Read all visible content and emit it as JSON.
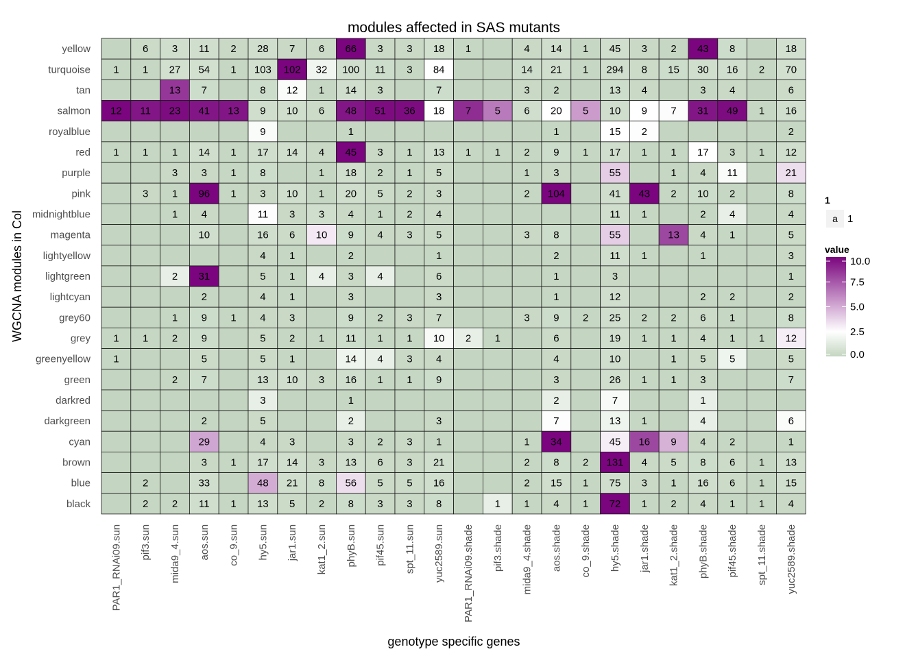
{
  "chart_data": {
    "type": "heatmap",
    "title": "modules affected in SAS mutants",
    "xlabel": "genotype specific genes",
    "ylabel": "WGCNA modules in Col",
    "x": [
      "PAR1_RNAi09.sun",
      "pif3.sun",
      "mida9_4.sun",
      "aos.sun",
      "co_9.sun",
      "hy5.sun",
      "jar1.sun",
      "kat1_2.sun",
      "phyB.sun",
      "pif45.sun",
      "spt_11.sun",
      "yuc2589.sun",
      "PAR1_RNAi09.shade",
      "pif3.shade",
      "mida9_4.shade",
      "aos.shade",
      "co_9.shade",
      "hy5.shade",
      "jar1.shade",
      "kat1_2.shade",
      "phyB.shade",
      "pif45.shade",
      "spt_11.shade",
      "yuc2589.shade"
    ],
    "y": [
      "yellow",
      "turquoise",
      "tan",
      "salmon",
      "royalblue",
      "red",
      "purple",
      "pink",
      "midnightblue",
      "magenta",
      "lightyellow",
      "lightgreen",
      "lightcyan",
      "grey60",
      "grey",
      "greenyellow",
      "green",
      "darkred",
      "darkgreen",
      "cyan",
      "brown",
      "blue",
      "black"
    ],
    "counts": [
      [
        null,
        6,
        3,
        11,
        2,
        28,
        7,
        6,
        66,
        3,
        3,
        18,
        1,
        null,
        4,
        14,
        1,
        45,
        3,
        2,
        43,
        8,
        null,
        18
      ],
      [
        1,
        1,
        27,
        54,
        1,
        103,
        102,
        32,
        100,
        11,
        3,
        84,
        null,
        null,
        14,
        21,
        1,
        294,
        8,
        15,
        30,
        16,
        2,
        70
      ],
      [
        null,
        null,
        13,
        7,
        null,
        8,
        12,
        1,
        14,
        3,
        null,
        7,
        null,
        null,
        3,
        2,
        null,
        13,
        4,
        null,
        3,
        4,
        null,
        6
      ],
      [
        12,
        11,
        23,
        41,
        13,
        9,
        10,
        6,
        48,
        51,
        36,
        18,
        7,
        5,
        6,
        20,
        5,
        10,
        9,
        7,
        31,
        49,
        1,
        16
      ],
      [
        null,
        null,
        null,
        null,
        null,
        9,
        null,
        null,
        1,
        null,
        null,
        null,
        null,
        null,
        null,
        1,
        null,
        15,
        2,
        null,
        null,
        null,
        null,
        2
      ],
      [
        1,
        1,
        1,
        14,
        1,
        17,
        14,
        4,
        45,
        3,
        1,
        13,
        1,
        1,
        2,
        9,
        1,
        17,
        1,
        1,
        17,
        3,
        1,
        12
      ],
      [
        null,
        null,
        3,
        3,
        1,
        8,
        null,
        1,
        18,
        2,
        1,
        5,
        null,
        null,
        1,
        3,
        null,
        55,
        null,
        1,
        4,
        11,
        null,
        21
      ],
      [
        null,
        3,
        1,
        96,
        1,
        3,
        10,
        1,
        20,
        5,
        2,
        3,
        null,
        null,
        2,
        104,
        null,
        41,
        43,
        2,
        10,
        2,
        null,
        8
      ],
      [
        null,
        null,
        1,
        4,
        null,
        11,
        3,
        3,
        4,
        1,
        2,
        4,
        null,
        null,
        null,
        null,
        null,
        11,
        1,
        null,
        2,
        4,
        null,
        4
      ],
      [
        null,
        null,
        null,
        10,
        null,
        16,
        6,
        10,
        9,
        4,
        3,
        5,
        null,
        null,
        3,
        8,
        null,
        55,
        null,
        13,
        4,
        1,
        null,
        5
      ],
      [
        null,
        null,
        null,
        null,
        null,
        4,
        1,
        null,
        2,
        null,
        null,
        1,
        null,
        null,
        null,
        2,
        null,
        11,
        1,
        null,
        1,
        null,
        null,
        3
      ],
      [
        null,
        null,
        2,
        31,
        null,
        5,
        1,
        4,
        3,
        4,
        null,
        6,
        null,
        null,
        null,
        1,
        null,
        3,
        null,
        null,
        null,
        null,
        null,
        1
      ],
      [
        null,
        null,
        null,
        2,
        null,
        4,
        1,
        null,
        3,
        null,
        null,
        3,
        null,
        null,
        null,
        1,
        null,
        12,
        null,
        null,
        2,
        2,
        null,
        2
      ],
      [
        null,
        null,
        1,
        9,
        1,
        4,
        3,
        null,
        9,
        2,
        3,
        7,
        null,
        null,
        3,
        9,
        2,
        25,
        2,
        2,
        6,
        1,
        null,
        8
      ],
      [
        1,
        1,
        2,
        9,
        null,
        5,
        2,
        1,
        11,
        1,
        1,
        10,
        2,
        1,
        null,
        6,
        null,
        19,
        1,
        1,
        4,
        1,
        1,
        12
      ],
      [
        1,
        null,
        null,
        5,
        null,
        5,
        1,
        null,
        14,
        4,
        3,
        4,
        null,
        null,
        null,
        4,
        null,
        10,
        null,
        1,
        5,
        5,
        null,
        5
      ],
      [
        null,
        null,
        2,
        7,
        null,
        13,
        10,
        3,
        16,
        1,
        1,
        9,
        null,
        null,
        null,
        3,
        null,
        26,
        1,
        1,
        3,
        null,
        null,
        7
      ],
      [
        null,
        null,
        null,
        null,
        null,
        3,
        null,
        null,
        1,
        null,
        null,
        null,
        null,
        null,
        null,
        2,
        null,
        7,
        null,
        null,
        1,
        null,
        null,
        null
      ],
      [
        null,
        null,
        null,
        2,
        null,
        5,
        null,
        null,
        2,
        null,
        null,
        3,
        null,
        null,
        null,
        7,
        null,
        13,
        1,
        null,
        4,
        null,
        null,
        6
      ],
      [
        null,
        null,
        null,
        29,
        null,
        4,
        3,
        null,
        3,
        2,
        3,
        1,
        null,
        null,
        1,
        34,
        null,
        45,
        16,
        9,
        4,
        2,
        null,
        1
      ],
      [
        null,
        null,
        null,
        3,
        1,
        17,
        14,
        3,
        13,
        6,
        3,
        21,
        null,
        null,
        2,
        8,
        2,
        131,
        4,
        5,
        8,
        6,
        1,
        13
      ],
      [
        null,
        2,
        null,
        33,
        null,
        48,
        21,
        8,
        56,
        5,
        5,
        16,
        null,
        null,
        2,
        15,
        1,
        75,
        3,
        1,
        16,
        6,
        1,
        15
      ],
      [
        null,
        2,
        2,
        11,
        1,
        13,
        5,
        2,
        8,
        3,
        3,
        8,
        null,
        1,
        1,
        4,
        1,
        72,
        1,
        2,
        4,
        1,
        1,
        4
      ]
    ],
    "fill_values": [
      [
        0,
        0.3,
        0.5,
        0.5,
        0.2,
        0.5,
        0.2,
        0.3,
        10,
        0.2,
        0.2,
        0.6,
        0.1,
        0,
        0.2,
        0.5,
        0.1,
        0.5,
        0.2,
        0.1,
        10,
        0.4,
        0,
        0.6
      ],
      [
        0.1,
        0.1,
        0.6,
        0.6,
        0.1,
        0.6,
        10,
        1.9,
        0.5,
        0.4,
        0.1,
        2.5,
        0,
        0,
        0.4,
        0.5,
        0.1,
        0.5,
        0.3,
        0.4,
        0.5,
        0.5,
        0.1,
        0.6
      ],
      [
        0,
        0,
        8.5,
        0.4,
        0,
        0.4,
        2.3,
        0.1,
        0.5,
        0.2,
        0,
        0.4,
        0,
        0,
        0.2,
        0.1,
        0,
        0.4,
        0.2,
        0,
        0.1,
        0.2,
        0,
        0.3
      ],
      [
        10,
        9.5,
        9.8,
        9.5,
        9.5,
        0.5,
        0.5,
        0.3,
        9.5,
        9.8,
        9.8,
        2.5,
        8.8,
        6.5,
        0.5,
        2.5,
        5.5,
        0.5,
        2.5,
        2.6,
        9.5,
        9.8,
        0.1,
        0.5
      ],
      [
        0,
        0,
        0,
        0,
        0,
        2.3,
        0,
        0,
        0.1,
        0,
        0,
        0,
        0,
        0,
        0,
        0.1,
        0,
        2.5,
        2.4,
        0,
        0,
        0,
        0,
        0.1
      ],
      [
        0.1,
        0.1,
        0.1,
        0.5,
        0.1,
        0.5,
        0.5,
        0.2,
        10,
        0.2,
        0.1,
        0.5,
        0.1,
        0.1,
        0.1,
        0.4,
        0.1,
        0.5,
        0.1,
        0.1,
        2.5,
        0.2,
        0.1,
        0.5
      ],
      [
        0,
        0,
        0.2,
        0.2,
        0.1,
        0.4,
        0,
        0.1,
        0.5,
        0.1,
        0.1,
        0.3,
        0,
        0,
        0.1,
        0.2,
        0,
        4.0,
        0,
        0.1,
        0.2,
        2.3,
        0,
        3.5
      ],
      [
        0,
        0.2,
        0.1,
        10,
        0.1,
        0.2,
        0.5,
        0.1,
        0.5,
        0.3,
        0.1,
        0.2,
        0,
        0,
        0.1,
        10,
        0,
        0.5,
        10,
        0.1,
        0.4,
        0.1,
        0,
        0.4
      ],
      [
        0,
        0,
        0.1,
        0.2,
        0,
        2.4,
        0.2,
        0.5,
        0.2,
        0.1,
        0.1,
        0.2,
        0,
        0,
        0,
        0,
        0,
        0.5,
        0.1,
        0,
        0.1,
        1.5,
        0,
        0.2
      ],
      [
        0,
        0,
        0,
        0.5,
        0,
        0.5,
        0.3,
        3.2,
        0.4,
        0.2,
        0.2,
        0.3,
        0,
        0,
        0.2,
        0.4,
        0,
        4.0,
        0,
        8.0,
        0.2,
        0.1,
        0,
        0.3
      ],
      [
        0,
        0,
        0,
        0,
        0,
        0.2,
        0.1,
        0,
        0.1,
        0,
        0,
        0.1,
        0,
        0,
        0,
        0.1,
        0,
        0.5,
        0.1,
        0,
        0.1,
        0,
        0,
        0.2
      ],
      [
        0,
        0,
        1.5,
        10,
        0,
        0.2,
        0.1,
        1.5,
        0.2,
        1.5,
        0,
        0.3,
        0,
        0,
        0,
        0.1,
        0,
        0.2,
        0,
        0,
        0,
        0,
        0,
        0.1
      ],
      [
        0,
        0,
        0,
        0.1,
        0,
        0.2,
        0.1,
        0,
        0.2,
        0,
        0,
        0.2,
        0,
        0,
        0,
        0.1,
        0,
        0.5,
        0,
        0,
        0.1,
        0.1,
        0,
        0.1
      ],
      [
        0,
        0,
        0.1,
        0.4,
        0.1,
        0.2,
        0.2,
        0,
        0.4,
        0.1,
        0.2,
        0.3,
        0,
        0,
        0.2,
        0.4,
        0.1,
        0.5,
        0.1,
        0.1,
        0.3,
        0.1,
        0,
        0.4
      ],
      [
        0.1,
        0.1,
        0.1,
        0.4,
        0,
        0.3,
        0.1,
        0.1,
        0.4,
        0.1,
        0.1,
        2.2,
        1.5,
        0.1,
        0,
        0.3,
        0,
        0.5,
        0.1,
        0.1,
        0.2,
        0.1,
        0.1,
        3.0
      ],
      [
        0.1,
        0,
        0,
        0.3,
        0,
        0.3,
        0.1,
        0,
        1.8,
        1.5,
        0.2,
        0.2,
        0,
        0,
        0,
        0.2,
        0,
        0.5,
        0,
        0.1,
        0.3,
        1.8,
        0,
        0.3
      ],
      [
        0,
        0,
        0.1,
        0.4,
        0,
        0.5,
        0.5,
        0.2,
        0.5,
        0.1,
        0.1,
        0.4,
        0,
        0,
        0,
        0.2,
        0,
        0.5,
        0.1,
        0.1,
        0.2,
        0,
        0,
        0.4
      ],
      [
        0,
        0,
        0,
        0,
        0,
        1.5,
        0,
        0,
        0.1,
        0,
        0,
        0,
        0,
        0,
        0,
        1.5,
        0,
        2.2,
        0,
        0,
        1.5,
        0,
        0,
        0
      ],
      [
        0,
        0,
        0,
        0.1,
        0,
        0.3,
        0,
        0,
        1.5,
        0,
        0,
        0.2,
        0,
        0,
        0,
        2.4,
        0,
        1.8,
        0.1,
        0,
        1.5,
        0,
        0,
        2.3
      ],
      [
        0,
        0,
        0,
        5.2,
        0,
        0.2,
        0.2,
        0,
        0.2,
        0.1,
        0.2,
        0.1,
        0,
        0,
        0.1,
        10,
        0,
        3.0,
        8.0,
        4.8,
        0.2,
        0.1,
        0,
        0.1
      ],
      [
        0,
        0,
        0,
        0.2,
        0.1,
        0.5,
        0.5,
        0.2,
        0.5,
        0.3,
        0.2,
        0.5,
        0,
        0,
        0.1,
        0.4,
        0.1,
        10,
        0.2,
        0.3,
        0.4,
        0.3,
        0.1,
        0.5
      ],
      [
        0,
        0.1,
        0,
        0.5,
        0,
        5.0,
        0.5,
        0.4,
        3.5,
        0.3,
        0.3,
        0.5,
        0,
        0,
        0.1,
        0.5,
        0.1,
        0.5,
        0.2,
        0.1,
        0.5,
        0.3,
        0.1,
        0.5
      ],
      [
        0,
        0.1,
        0.1,
        0.5,
        0.1,
        0.5,
        0.3,
        0.1,
        0.4,
        0.2,
        0.2,
        0.4,
        0,
        1.5,
        0.1,
        0.2,
        0.1,
        10,
        0.1,
        0.1,
        0.2,
        0.1,
        0.1,
        0.2
      ]
    ],
    "fill_range": [
      0,
      10
    ],
    "colors": {
      "low": "#c4d6c1",
      "mid": "#ffffff",
      "high": "#7a057e",
      "mid_value": 2.5
    },
    "legend": {
      "title_value": "value",
      "ticks": [
        10.0,
        7.5,
        5.0,
        2.5,
        0.0
      ],
      "tick_labels": [
        "10.0",
        "7.5",
        "5.0",
        "2.5",
        "0.0"
      ],
      "title_one": "1",
      "key_glyph": "a",
      "key_label": "1",
      "placement": "right"
    }
  }
}
